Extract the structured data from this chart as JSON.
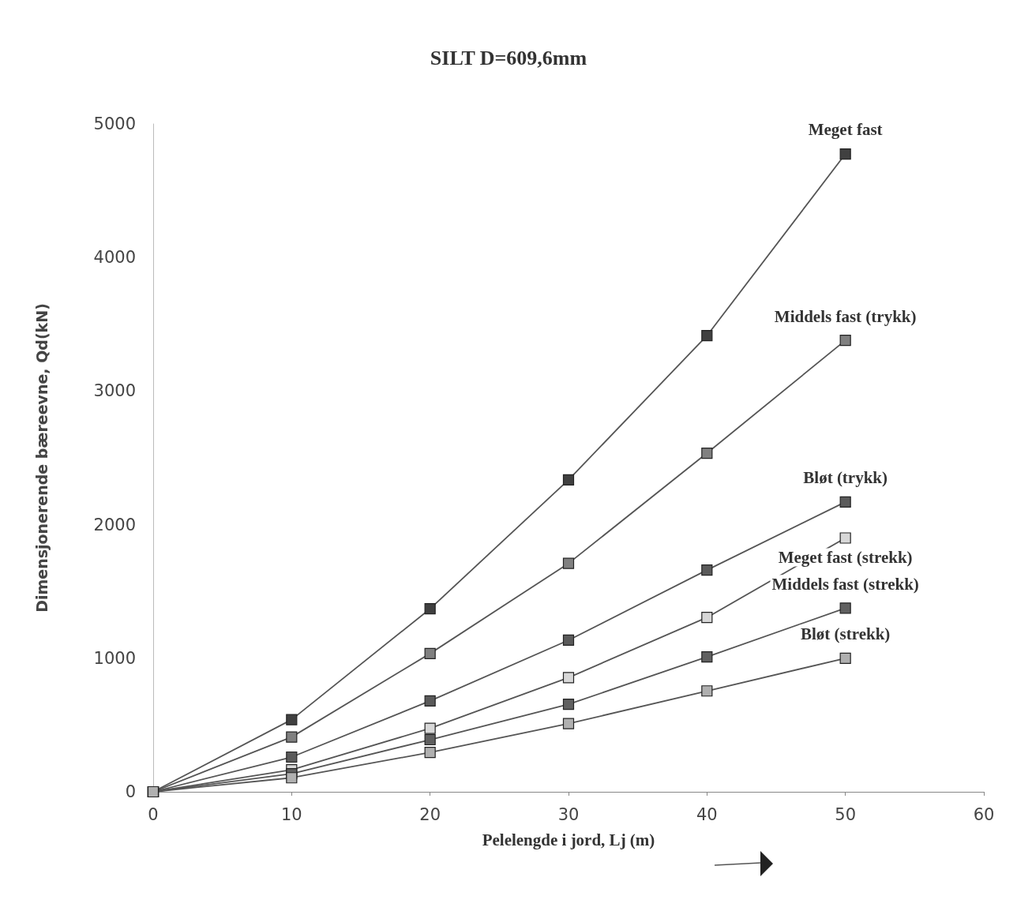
{
  "chart_data": {
    "type": "line",
    "title": "SILT D=609,6mm",
    "xlabel": "Pelelengde i jord, Lj (m)",
    "ylabel": "Dimensjonerende bæreevne, Qd(kN)",
    "x": [
      0,
      10,
      20,
      30,
      40,
      50
    ],
    "series": [
      {
        "name": "Meget fast",
        "color": "#404040",
        "values": [
          0,
          540,
          1370,
          2335,
          3415,
          4775
        ]
      },
      {
        "name": "Middels fast (trykk)",
        "color": "#808080",
        "values": [
          0,
          410,
          1035,
          1710,
          2535,
          3380
        ]
      },
      {
        "name": "Bløt (trykk)",
        "color": "#5a5a5a",
        "values": [
          0,
          260,
          680,
          1135,
          1660,
          2170
        ]
      },
      {
        "name": "Meget fast (strekk)",
        "color": "#d8d8d8",
        "values": [
          0,
          165,
          475,
          855,
          1305,
          1900
        ]
      },
      {
        "name": "Middels fast (strekk)",
        "color": "#606060",
        "values": [
          0,
          135,
          390,
          655,
          1010,
          1375
        ]
      },
      {
        "name": "Bløt (strekk)",
        "color": "#b0b0b0",
        "values": [
          0,
          105,
          295,
          510,
          755,
          1000
        ]
      }
    ],
    "xlim": [
      0,
      60
    ],
    "xticks": [
      0,
      10,
      20,
      30,
      40,
      50,
      60
    ],
    "ylim": [
      0,
      5000
    ],
    "yticks": [
      0,
      1000,
      2000,
      3000,
      4000,
      5000
    ],
    "grid": false,
    "legend": false,
    "marker": "square",
    "line_style": "solid"
  }
}
